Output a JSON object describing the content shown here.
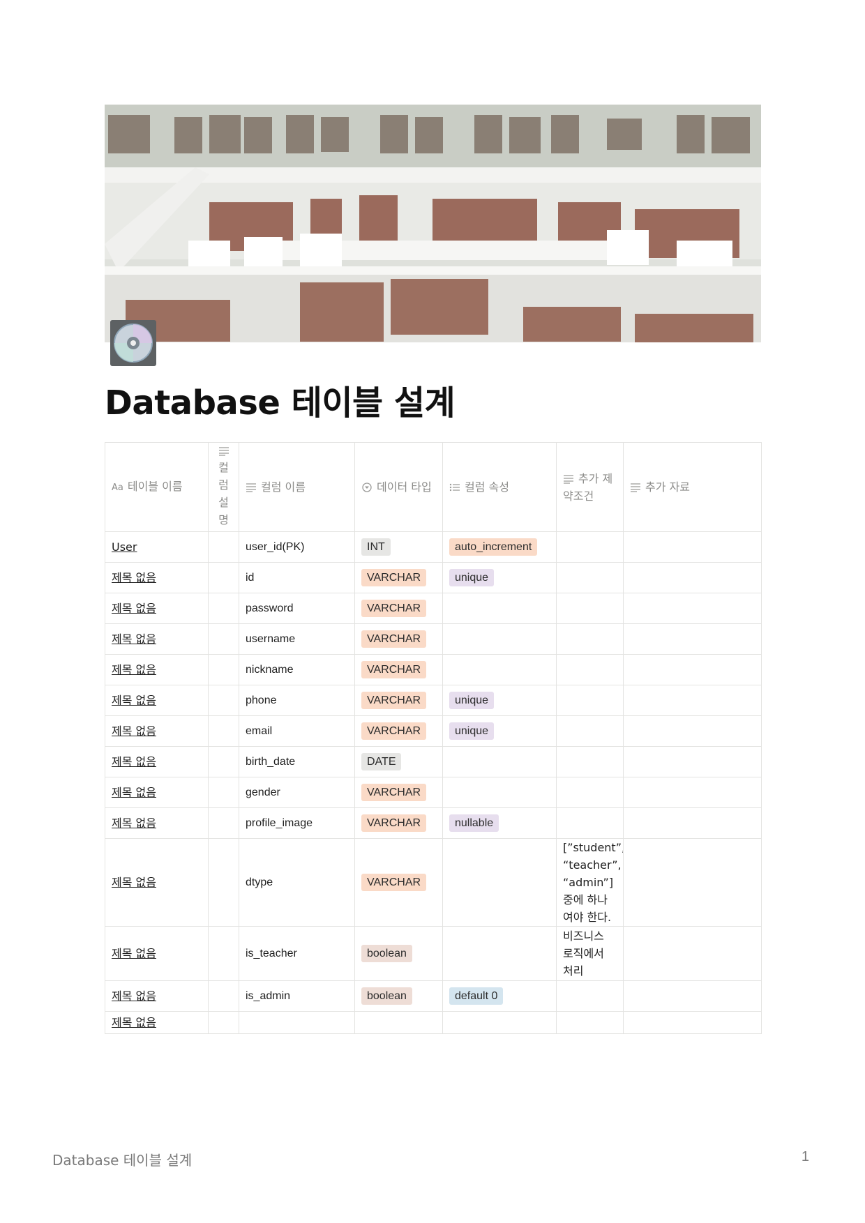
{
  "page": {
    "icon": "disc-icon",
    "title": "Database 테이블 설계"
  },
  "table": {
    "headers": [
      {
        "label": "테이블 이름",
        "icon": "title-icon"
      },
      {
        "label": "컬럼 설명",
        "icon": "text-icon"
      },
      {
        "label": "컬럼 이름",
        "icon": "text-icon"
      },
      {
        "label": "데이터 타입",
        "icon": "select-icon"
      },
      {
        "label": "컬럼 속성",
        "icon": "multi-select-icon"
      },
      {
        "label": "추가 제약조건",
        "icon": "text-icon"
      },
      {
        "label": "추가 자료",
        "icon": "text-icon"
      }
    ],
    "header_title_prefix": "Aa",
    "rows": [
      {
        "name": "User",
        "column": "user_id(PK)",
        "type": "INT",
        "type_color": "gray",
        "attr": "auto_increment",
        "attr_color": "orange",
        "constraint": ""
      },
      {
        "name": "제목 없음",
        "column": "id",
        "type": "VARCHAR",
        "type_color": "orange",
        "attr": "unique",
        "attr_color": "purple",
        "constraint": ""
      },
      {
        "name": "제목 없음",
        "column": "password",
        "type": "VARCHAR",
        "type_color": "orange",
        "attr": "",
        "attr_color": "",
        "constraint": ""
      },
      {
        "name": "제목 없음",
        "column": "username",
        "type": "VARCHAR",
        "type_color": "orange",
        "attr": "",
        "attr_color": "",
        "constraint": ""
      },
      {
        "name": "제목 없음",
        "column": "nickname",
        "type": "VARCHAR",
        "type_color": "orange",
        "attr": "",
        "attr_color": "",
        "constraint": ""
      },
      {
        "name": "제목 없음",
        "column": "phone",
        "type": "VARCHAR",
        "type_color": "orange",
        "attr": "unique",
        "attr_color": "purple",
        "constraint": ""
      },
      {
        "name": "제목 없음",
        "column": "email",
        "type": "VARCHAR",
        "type_color": "orange",
        "attr": "unique",
        "attr_color": "purple",
        "constraint": ""
      },
      {
        "name": "제목 없음",
        "column": "birth_date",
        "type": "DATE",
        "type_color": "gray",
        "attr": "",
        "attr_color": "",
        "constraint": ""
      },
      {
        "name": "제목 없음",
        "column": "gender",
        "type": "VARCHAR",
        "type_color": "orange",
        "attr": "",
        "attr_color": "",
        "constraint": ""
      },
      {
        "name": "제목 없음",
        "column": "profile_image",
        "type": "VARCHAR",
        "type_color": "orange",
        "attr": "nullable",
        "attr_color": "purple",
        "constraint": ""
      },
      {
        "name": "제목 없음",
        "column": "dtype",
        "type": "VARCHAR",
        "type_color": "orange",
        "attr": "",
        "attr_color": "",
        "constraint": "[”student”, “teacher”, “admin”] 중에 하나여야 한다."
      },
      {
        "name": "제목 없음",
        "column": "is_teacher",
        "type": "boolean",
        "type_color": "brown",
        "attr": "",
        "attr_color": "",
        "constraint": "비즈니스 로직에서 처리"
      },
      {
        "name": "제목 없음",
        "column": "is_admin",
        "type": "boolean",
        "type_color": "brown",
        "attr": "default 0",
        "attr_color": "blue",
        "constraint": ""
      },
      {
        "name": "제목 없음",
        "column": "",
        "type": "",
        "type_color": "",
        "attr": "",
        "attr_color": "",
        "constraint": ""
      }
    ]
  },
  "footer": {
    "title": "Database 테이블 설계",
    "page_number": "1"
  }
}
